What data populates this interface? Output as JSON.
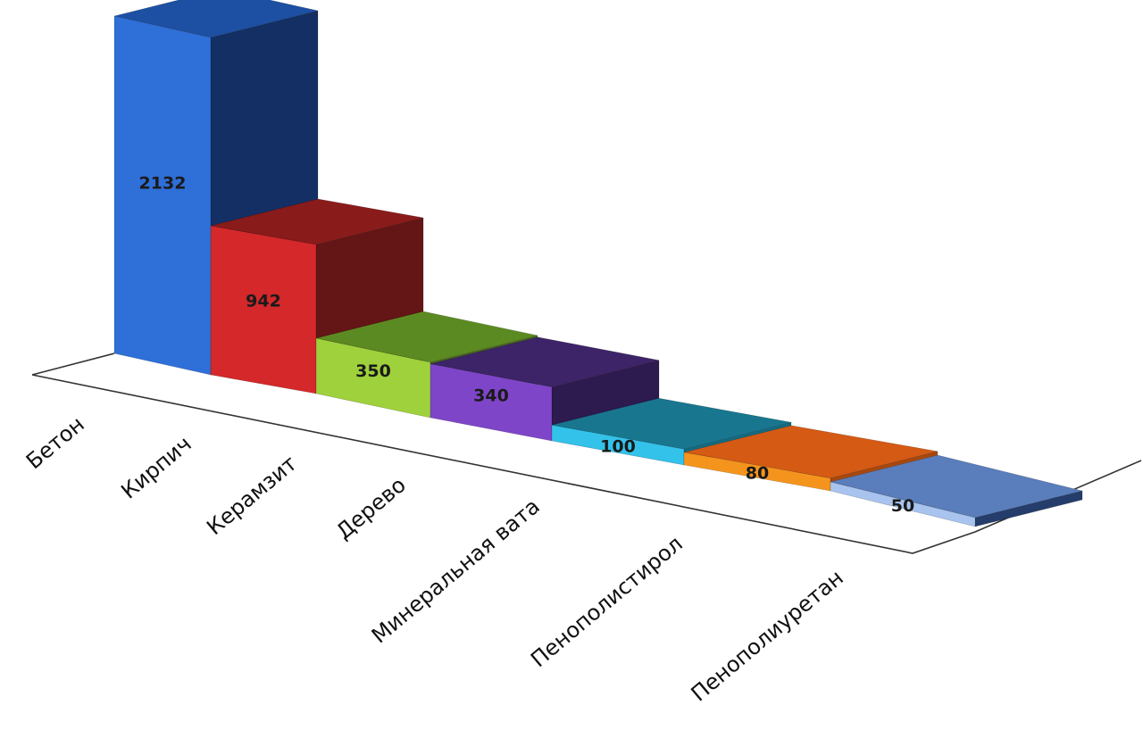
{
  "chart_data": {
    "type": "bar",
    "categories": [
      "Бетон",
      "Кирпич",
      "Керамзит",
      "Дерево",
      "Минеральная вата",
      "Пенополистирол",
      "Пенополиуретан"
    ],
    "values": [
      2132,
      942,
      350,
      340,
      100,
      80,
      50
    ],
    "value_labels": [
      "2132",
      "942",
      "350",
      "340",
      "100",
      "80",
      "50"
    ],
    "title": "",
    "xlabel": "",
    "ylabel": "",
    "grid": false,
    "legend": "none",
    "colors": [
      {
        "front": "#2e6fd8",
        "side": "#142f63",
        "top": "#1d4fa3"
      },
      {
        "front": "#d4282a",
        "side": "#641515",
        "top": "#8a1b1b"
      },
      {
        "front": "#9fd13c",
        "side": "#4a6e1a",
        "top": "#5c8a22"
      },
      {
        "front": "#7e45c8",
        "side": "#2d1a4f",
        "top": "#3d2468"
      },
      {
        "front": "#33c2ea",
        "side": "#136c84",
        "top": "#18778f"
      },
      {
        "front": "#f5941d",
        "side": "#a8480e",
        "top": "#d55a14"
      },
      {
        "front": "#a8c4ee",
        "side": "#243d6a",
        "top": "#5a7dbb"
      }
    ]
  }
}
